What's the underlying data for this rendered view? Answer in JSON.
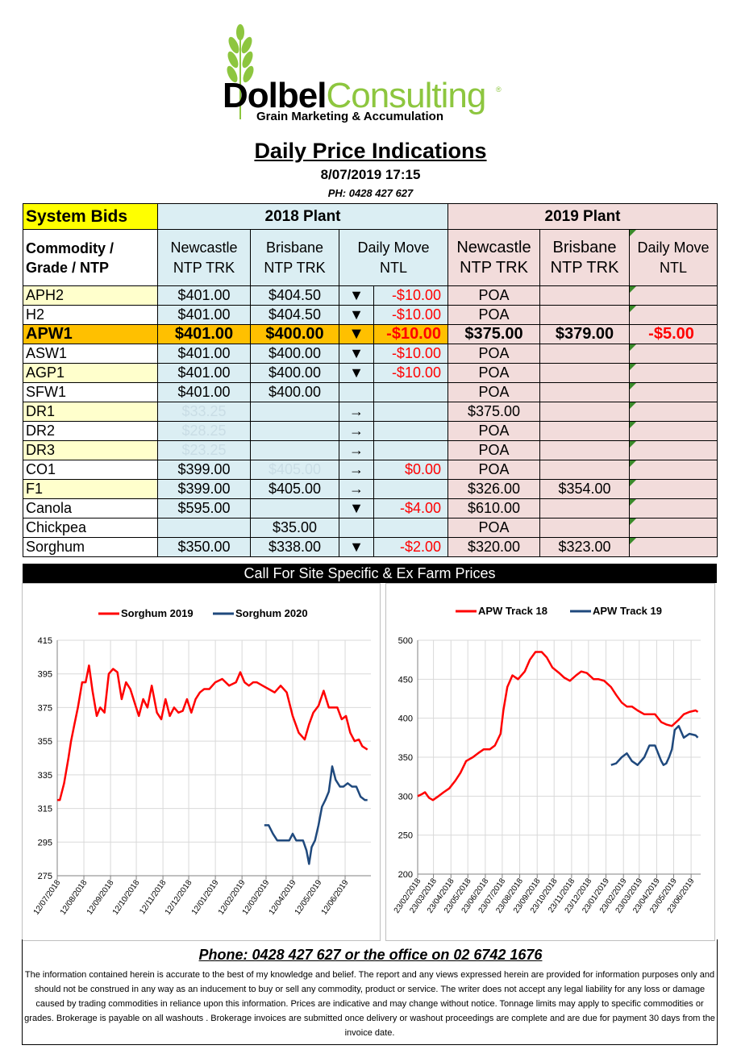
{
  "logo": {
    "name_part1": "Dolbel",
    "name_part2": "Consulting",
    "registered": "®",
    "tagline": "Grain Marketing & Accumulation"
  },
  "header": {
    "title": "Daily Price Indications",
    "date": "8/07/2019 17:15",
    "phone": "PH: 0428 427 627"
  },
  "table": {
    "system_bids": "System Bids",
    "plant_2018": "2018 Plant",
    "plant_2019": "2019 Plant",
    "col_commodity": "Commodity / Grade / NTP",
    "col_newcastle": "Newcastle NTP TRK",
    "col_brisbane": "Brisbane NTP TRK",
    "col_move_2018": "Daily  Move NTL",
    "col_newcastle_19": "Newcastle NTP TRK",
    "col_brisbane_19": "Brisbane NTP TRK",
    "col_move_2019": "Daily Move NTL",
    "rows": [
      {
        "grade": "APH2",
        "n18": "$401.00",
        "b18": "$404.50",
        "arrow": "▼",
        "move18": "-$10.00",
        "n19": "POA",
        "b19": "",
        "move19": ""
      },
      {
        "grade": "H2",
        "n18": "$401.00",
        "b18": "$404.50",
        "arrow": "▼",
        "move18": "-$10.00",
        "n19": "POA",
        "b19": "",
        "move19": ""
      },
      {
        "grade": "APW1",
        "n18": "$401.00",
        "b18": "$400.00",
        "arrow": "▼",
        "move18": "-$10.00",
        "n19": "$375.00",
        "b19": "$379.00",
        "move19": "-$5.00"
      },
      {
        "grade": "ASW1",
        "n18": "$401.00",
        "b18": "$400.00",
        "arrow": "▼",
        "move18": "-$10.00",
        "n19": "POA",
        "b19": "",
        "move19": ""
      },
      {
        "grade": "AGP1",
        "n18": "$401.00",
        "b18": "$400.00",
        "arrow": "▼",
        "move18": "-$10.00",
        "n19": "POA",
        "b19": "",
        "move19": ""
      },
      {
        "grade": "SFW1",
        "n18": "$401.00",
        "b18": "$400.00",
        "arrow": "",
        "move18": "",
        "n19": "POA",
        "b19": "",
        "move19": ""
      },
      {
        "grade": "DR1",
        "n18": "$33.25",
        "b18": "",
        "arrow": "→",
        "move18": "",
        "n19": "$375.00",
        "b19": "",
        "move19": ""
      },
      {
        "grade": "DR2",
        "n18": "$28.25",
        "b18": "",
        "arrow": "→",
        "move18": "",
        "n19": "POA",
        "b19": "",
        "move19": ""
      },
      {
        "grade": "DR3",
        "n18": "$23.25",
        "b18": "",
        "arrow": "→",
        "move18": "",
        "n19": "POA",
        "b19": "",
        "move19": ""
      },
      {
        "grade": "CO1",
        "n18": "$399.00",
        "b18": "$405.00",
        "arrow": "→",
        "move18": "$0.00",
        "n19": "POA",
        "b19": "",
        "move19": ""
      },
      {
        "grade": "F1",
        "n18": "$399.00",
        "b18": "$405.00",
        "arrow": "→",
        "move18": "",
        "n19": "$326.00",
        "b19": "$354.00",
        "move19": ""
      },
      {
        "grade": "Canola",
        "n18": "$595.00",
        "b18": "",
        "arrow": "▼",
        "move18": "-$4.00",
        "n19": "$610.00",
        "b19": "",
        "move19": ""
      },
      {
        "grade": "Chickpea",
        "n18": "",
        "b18": "$35.00",
        "arrow": "",
        "move18": "",
        "n19": "POA",
        "b19": "",
        "move19": ""
      },
      {
        "grade": "Sorghum",
        "n18": "$350.00",
        "b18": "$338.00",
        "arrow": "▼",
        "move18": "-$2.00",
        "n19": "$320.00",
        "b19": "$323.00",
        "move19": ""
      }
    ],
    "footer_bar": "Call For Site Specific & Ex Farm Prices"
  },
  "chart_data": [
    {
      "type": "line",
      "series": [
        {
          "name": "Sorghum 2019",
          "color": "#ff0000",
          "x": [
            "2018-07-12",
            "2018-07-15",
            "2018-07-20",
            "2018-07-25",
            "2018-07-28",
            "2018-08-01",
            "2018-08-05",
            "2018-08-10",
            "2018-08-14",
            "2018-08-18",
            "2018-08-22",
            "2018-08-27",
            "2018-08-31",
            "2018-09-05",
            "2018-09-10",
            "2018-09-15",
            "2018-09-20",
            "2018-09-25",
            "2018-09-30",
            "2018-10-05",
            "2018-10-10",
            "2018-10-15",
            "2018-10-20",
            "2018-10-25",
            "2018-10-30",
            "2018-11-05",
            "2018-11-10",
            "2018-11-15",
            "2018-11-20",
            "2018-11-25",
            "2018-11-30",
            "2018-12-05",
            "2018-12-10",
            "2018-12-15",
            "2018-12-20",
            "2018-12-25",
            "2018-12-30",
            "2019-01-05",
            "2019-01-12",
            "2019-01-20",
            "2019-01-28",
            "2019-02-05",
            "2019-02-10",
            "2019-02-15",
            "2019-02-20",
            "2019-02-25",
            "2019-03-01",
            "2019-03-08",
            "2019-03-15",
            "2019-03-22",
            "2019-03-29",
            "2019-04-05",
            "2019-04-12",
            "2019-04-19",
            "2019-04-26",
            "2019-05-01",
            "2019-05-06",
            "2019-05-12",
            "2019-05-18",
            "2019-05-24",
            "2019-05-30",
            "2019-06-03",
            "2019-06-08",
            "2019-06-13",
            "2019-06-18",
            "2019-06-23",
            "2019-06-28",
            "2019-07-02",
            "2019-07-05",
            "2019-07-08"
          ],
          "y": [
            320,
            320,
            330,
            345,
            355,
            365,
            375,
            390,
            390,
            400,
            385,
            370,
            375,
            372,
            395,
            398,
            396,
            380,
            390,
            386,
            378,
            370,
            380,
            375,
            388,
            372,
            368,
            380,
            370,
            375,
            372,
            373,
            380,
            372,
            380,
            384,
            386,
            386,
            390,
            392,
            388,
            390,
            396,
            390,
            388,
            390,
            390,
            388,
            386,
            384,
            388,
            384,
            370,
            360,
            356,
            365,
            372,
            376,
            385,
            375,
            375,
            375,
            368,
            370,
            360,
            355,
            356,
            352,
            351,
            350
          ]
        },
        {
          "name": "Sorghum 2020",
          "color": "#1f497d",
          "x": [
            "2019-03-10",
            "2019-03-15",
            "2019-03-20",
            "2019-03-25",
            "2019-04-01",
            "2019-04-08",
            "2019-04-12",
            "2019-04-16",
            "2019-04-20",
            "2019-04-24",
            "2019-04-28",
            "2019-05-01",
            "2019-05-04",
            "2019-05-08",
            "2019-05-12",
            "2019-05-16",
            "2019-05-20",
            "2019-05-24",
            "2019-05-28",
            "2019-06-01",
            "2019-06-06",
            "2019-06-10",
            "2019-06-15",
            "2019-06-20",
            "2019-06-25",
            "2019-06-30",
            "2019-07-05",
            "2019-07-08"
          ],
          "y": [
            305,
            305,
            300,
            296,
            296,
            296,
            300,
            296,
            296,
            296,
            290,
            282,
            292,
            296,
            305,
            316,
            320,
            325,
            340,
            332,
            328,
            328,
            330,
            328,
            328,
            322,
            320,
            320
          ]
        }
      ],
      "ylim": [
        275,
        415
      ],
      "yticks": [
        275,
        295,
        315,
        335,
        355,
        375,
        395,
        415
      ],
      "xticks": [
        "12/07/2018",
        "12/08/2018",
        "12/09/2018",
        "12/10/2018",
        "12/11/2018",
        "12/12/2018",
        "12/01/2019",
        "12/02/2019",
        "12/03/2019",
        "12/04/2019",
        "12/05/2019",
        "12/06/2019"
      ],
      "xlim": [
        "2018-07-12",
        "2019-07-12"
      ],
      "legend": "top"
    },
    {
      "type": "line",
      "series": [
        {
          "name": "APW Track 18",
          "color": "#ff0000",
          "x": [
            "2018-02-23",
            "2018-03-01",
            "2018-03-08",
            "2018-03-15",
            "2018-03-22",
            "2018-04-01",
            "2018-04-10",
            "2018-04-20",
            "2018-05-01",
            "2018-05-10",
            "2018-05-20",
            "2018-06-01",
            "2018-06-10",
            "2018-06-20",
            "2018-07-01",
            "2018-07-10",
            "2018-07-20",
            "2018-07-25",
            "2018-08-01",
            "2018-08-10",
            "2018-08-20",
            "2018-09-01",
            "2018-09-10",
            "2018-09-20",
            "2018-10-01",
            "2018-10-10",
            "2018-10-20",
            "2018-11-01",
            "2018-11-10",
            "2018-11-20",
            "2018-12-01",
            "2018-12-10",
            "2018-12-20",
            "2019-01-01",
            "2019-01-10",
            "2019-01-20",
            "2019-02-01",
            "2019-02-10",
            "2019-02-20",
            "2019-03-01",
            "2019-03-10",
            "2019-03-20",
            "2019-04-01",
            "2019-04-10",
            "2019-04-20",
            "2019-05-01",
            "2019-05-10",
            "2019-05-20",
            "2019-06-01",
            "2019-06-10",
            "2019-06-20",
            "2019-07-01",
            "2019-07-05"
          ],
          "y": [
            300,
            302,
            305,
            298,
            295,
            300,
            305,
            310,
            320,
            330,
            345,
            350,
            355,
            360,
            360,
            365,
            380,
            410,
            440,
            455,
            450,
            460,
            475,
            485,
            485,
            478,
            465,
            458,
            452,
            448,
            455,
            460,
            458,
            450,
            450,
            448,
            440,
            430,
            420,
            415,
            415,
            410,
            405,
            405,
            405,
            395,
            392,
            390,
            398,
            405,
            408,
            410,
            408
          ]
        },
        {
          "name": "APW Track 19",
          "color": "#1f497d",
          "x": [
            "2019-02-01",
            "2019-02-10",
            "2019-02-20",
            "2019-03-01",
            "2019-03-10",
            "2019-03-20",
            "2019-04-01",
            "2019-04-10",
            "2019-04-20",
            "2019-05-01",
            "2019-05-05",
            "2019-05-10",
            "2019-05-15",
            "2019-05-20",
            "2019-05-25",
            "2019-06-01",
            "2019-06-10",
            "2019-06-20",
            "2019-07-01",
            "2019-07-05"
          ],
          "y": [
            340,
            342,
            350,
            355,
            345,
            340,
            350,
            365,
            365,
            345,
            340,
            342,
            350,
            360,
            385,
            390,
            375,
            380,
            378,
            375
          ]
        }
      ],
      "ylim": [
        200,
        500
      ],
      "yticks": [
        200,
        250,
        300,
        350,
        400,
        450,
        500
      ],
      "xticks": [
        "23/02/2018",
        "23/03/2018",
        "23/04/2018",
        "23/05/2018",
        "23/06/2018",
        "23/07/2018",
        "23/08/2018",
        "23/09/2018",
        "23/10/2018",
        "23/11/2018",
        "23/12/2018",
        "23/01/2019",
        "23/02/2019",
        "23/03/2019",
        "23/04/2019",
        "23/05/2019",
        "23/06/2019"
      ],
      "xlim": [
        "2018-02-23",
        "2019-07-10"
      ],
      "legend": "top"
    }
  ],
  "footer": {
    "phone": "Phone: 0428 427 627 or the office on 02 6742 1676",
    "disclaimer": "The information contained herein is accurate to the best of my knowledge and belief.  The report and any views expressed herein are provided for information purposes only and should not be construed in any way as an inducement to buy or sell any commodity, product or service. The writer does not accept any legal liability for any loss or damage caused by trading commodities in reliance upon this information. Prices are indicative and may change without notice. Tonnage limits may apply to specific commodities or grades.  Brokerage is payable on all washouts . Brokerage invoices are submitted once delivery or washout proceedings are complete and are due for payment 30 days from the invoice date."
  }
}
